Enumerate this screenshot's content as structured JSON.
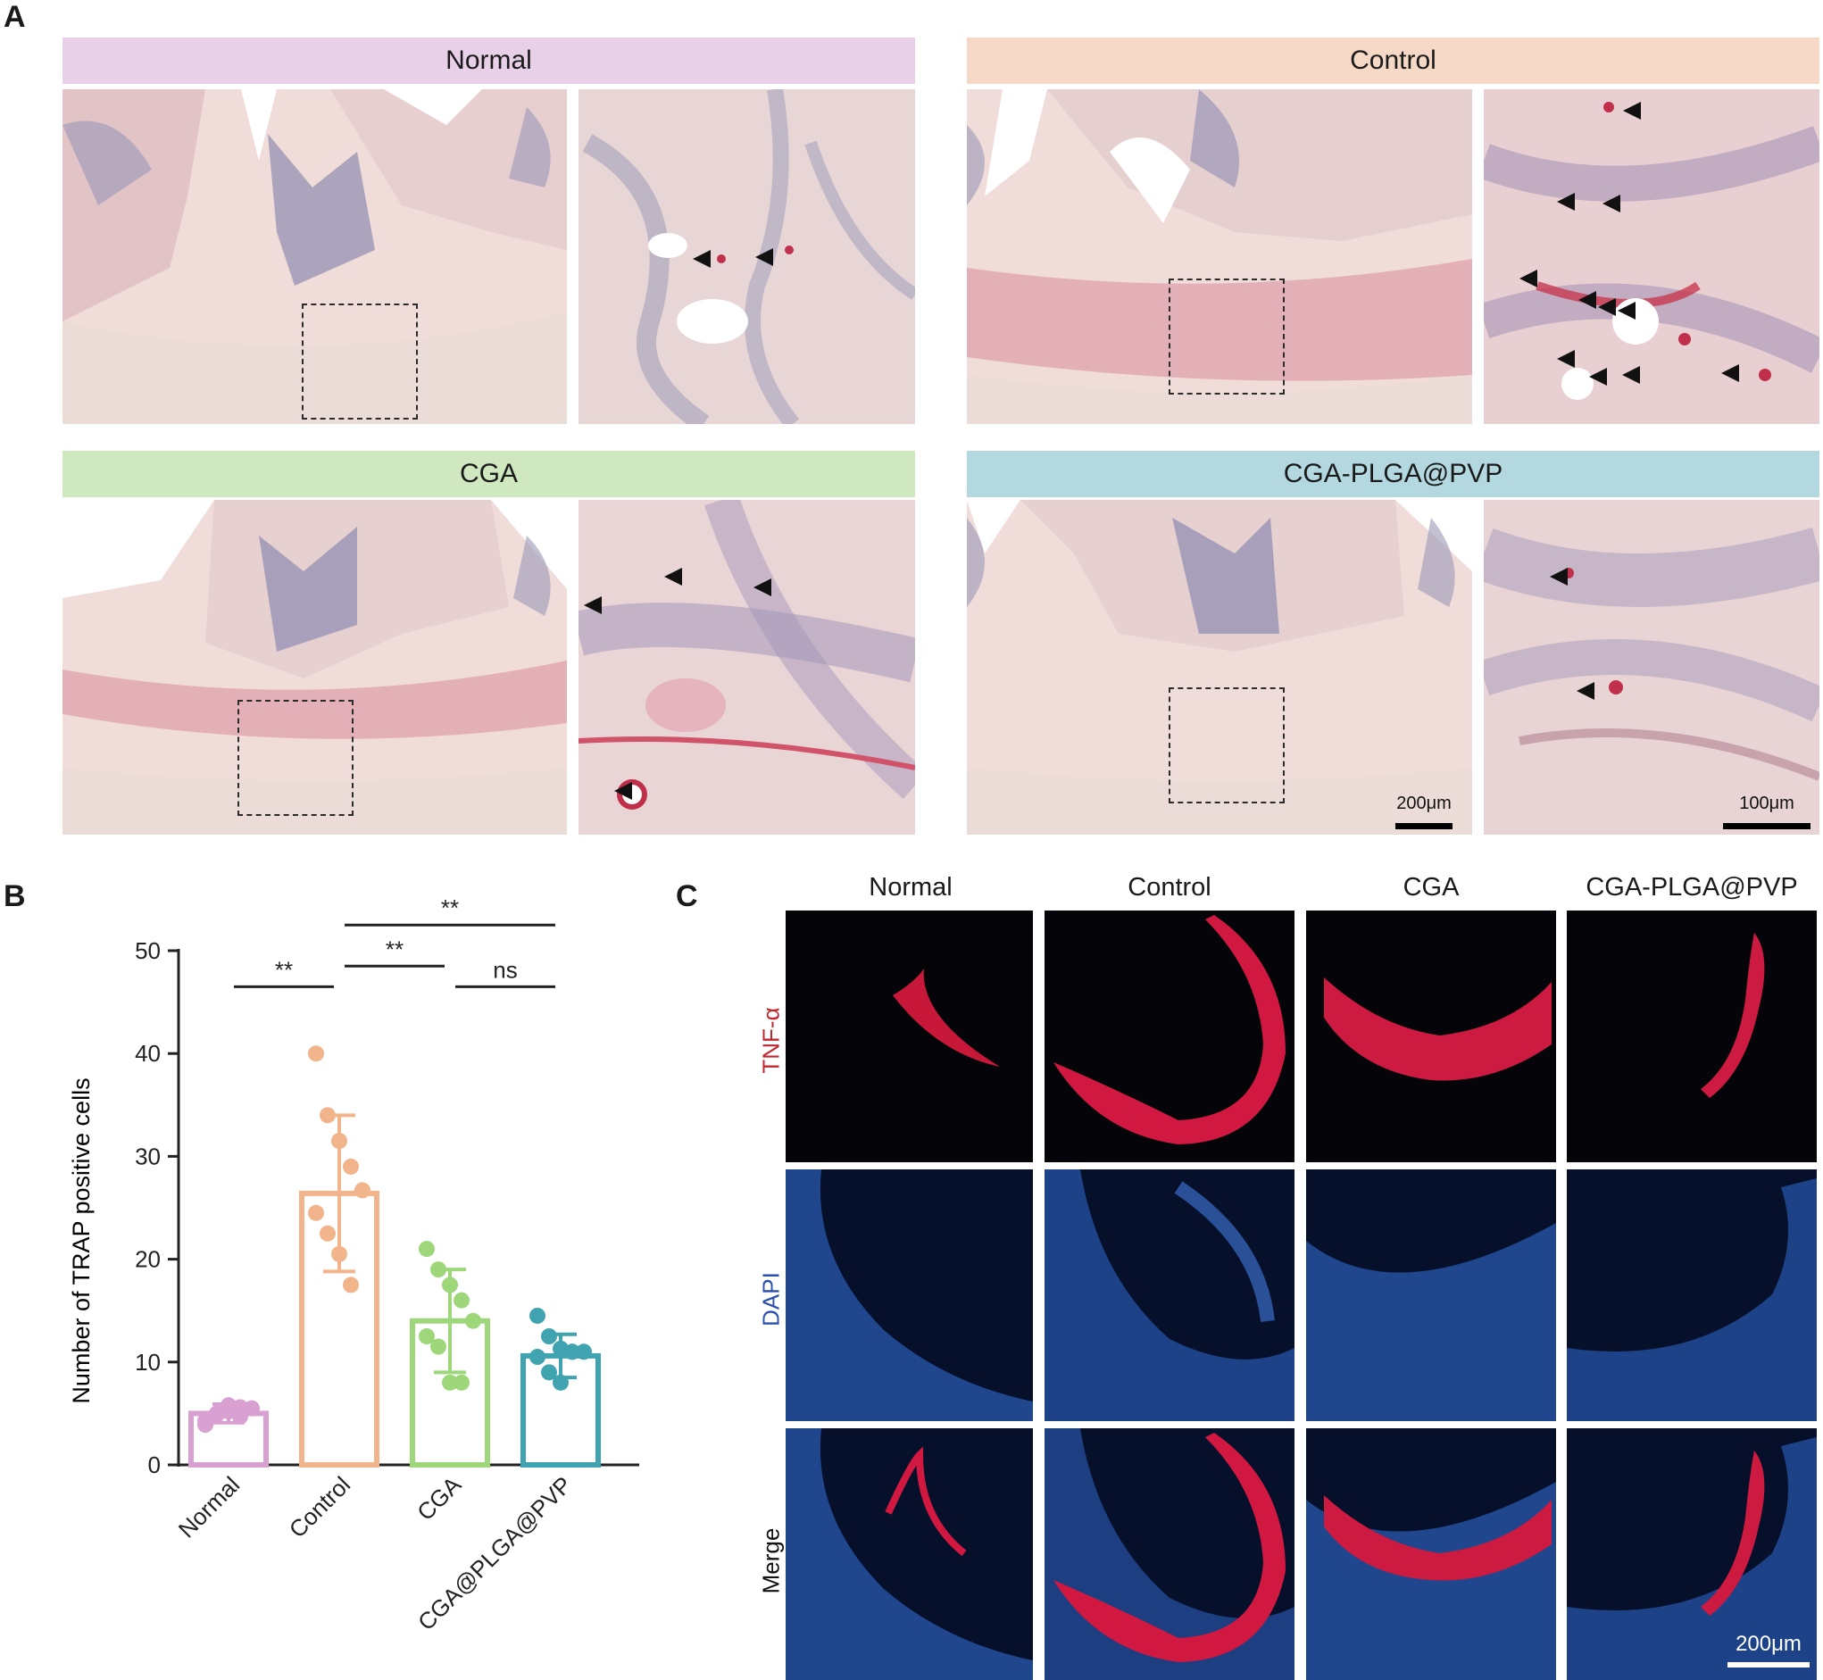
{
  "panel_labels": {
    "a": "A",
    "b": "B",
    "c": "C"
  },
  "panel_a": {
    "groups": [
      {
        "name": "Normal",
        "color": "#e8d0e8"
      },
      {
        "name": "Control",
        "color": "#f6d8c6"
      },
      {
        "name": "CGA",
        "color": "#cfe8c0"
      },
      {
        "name": "CGA-PLGA@PVP",
        "color": "#b4d8e0"
      }
    ],
    "scale_overview": "200μm",
    "scale_zoom": "100μm"
  },
  "panel_c": {
    "columns": [
      "Normal",
      "Control",
      "CGA",
      "CGA-PLGA@PVP"
    ],
    "rows": [
      "TNF-α",
      "DAPI",
      "Merge"
    ],
    "row_colors": [
      "#c0262d",
      "#2a4fae",
      "#111111"
    ],
    "scale": "200μm"
  },
  "chart_data": {
    "type": "bar",
    "ylabel": "Number of TRAP positive cells",
    "categories": [
      "Normal",
      "Control",
      "CGA",
      "CGA@PLGA@PVP"
    ],
    "ylim": [
      0,
      50
    ],
    "yticks": [
      0,
      10,
      20,
      30,
      40,
      50
    ],
    "means": [
      5,
      26.4,
      14,
      10.6
    ],
    "sd": [
      0.9,
      7.6,
      5.0,
      2.1
    ],
    "colors": [
      "#d9a0d2",
      "#f2b48a",
      "#9ed67a",
      "#40a3b0"
    ],
    "points": [
      [
        4.3,
        5.0,
        5.8,
        4.7,
        5.5,
        3.9,
        4.9,
        5.2,
        5.6
      ],
      [
        40.0,
        34.0,
        31.5,
        29.0,
        26.7,
        24.5,
        22.5,
        20.5,
        17.5
      ],
      [
        21.0,
        19.0,
        17.5,
        16.0,
        14.0,
        12.5,
        11.5,
        8.0,
        8.0
      ],
      [
        14.5,
        12.5,
        11.3,
        11.0,
        11.0,
        10.5,
        9.0,
        8.0,
        11.0
      ]
    ],
    "significance": [
      {
        "from": 0,
        "to": 1,
        "label": "**",
        "y": 46.5
      },
      {
        "from": 1,
        "to": 2,
        "label": "**",
        "y": 48.5
      },
      {
        "from": 1,
        "to": 3,
        "label": "**",
        "y": 52.5
      },
      {
        "from": 2,
        "to": 3,
        "label": "ns",
        "y": 46.5
      }
    ]
  }
}
